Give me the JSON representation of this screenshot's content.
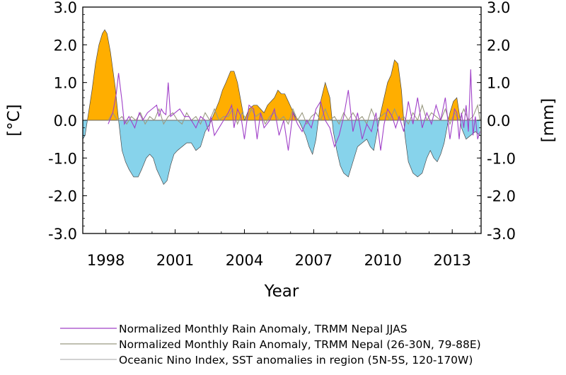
{
  "chart_data": {
    "type": "area",
    "xlabel": "Year",
    "ylabel_left": "[°C]",
    "ylabel_right": "[mm]",
    "xlim": [
      1997.0,
      2014.25
    ],
    "ylim": [
      -3.0,
      3.0
    ],
    "y_ticks": [
      3.0,
      2.0,
      1.0,
      0.0,
      -1.0,
      -2.0,
      -3.0
    ],
    "y_tick_labels": [
      "3.0",
      "2.0",
      "1.0",
      "0.0",
      "-1.0",
      "-2.0",
      "-3.0"
    ],
    "x_ticks": [
      1998,
      2001,
      2004,
      2007,
      2010,
      2013
    ],
    "x_tick_labels": [
      "1998",
      "2001",
      "2004",
      "2007",
      "2010",
      "2013"
    ],
    "grid": false,
    "legend_position": "bottom",
    "colors": {
      "positive_fill": "#FFAE00",
      "negative_fill": "#87D3EB",
      "rain_jjas": "#A040C8",
      "rain_region": "#9A9A82",
      "oni_line": "#8A8A8A"
    },
    "series": [
      {
        "name": "Oceanic Nino Index, SST anomalies in region (5N-5S, 120-170W)",
        "style": "filled-area",
        "x": [
          1997.0,
          1997.1,
          1997.25,
          1997.4,
          1997.55,
          1997.7,
          1997.85,
          1997.95,
          1998.05,
          1998.2,
          1998.4,
          1998.55,
          1998.7,
          1998.85,
          1999.0,
          1999.2,
          1999.4,
          1999.55,
          1999.75,
          1999.9,
          2000.05,
          2000.2,
          2000.35,
          2000.5,
          2000.65,
          2000.8,
          2000.95,
          2001.1,
          2001.3,
          2001.5,
          2001.7,
          2001.9,
          2002.1,
          2002.3,
          2002.5,
          2002.7,
          2002.9,
          2003.05,
          2003.2,
          2003.4,
          2003.55,
          2003.7,
          2003.85,
          2004.0,
          2004.2,
          2004.4,
          2004.55,
          2004.7,
          2004.85,
          2005.0,
          2005.15,
          2005.3,
          2005.45,
          2005.6,
          2005.75,
          2005.9,
          2006.05,
          2006.2,
          2006.35,
          2006.5,
          2006.65,
          2006.8,
          2006.95,
          2007.1,
          2007.3,
          2007.5,
          2007.7,
          2007.85,
          2008.0,
          2008.15,
          2008.3,
          2008.5,
          2008.7,
          2008.9,
          2009.1,
          2009.3,
          2009.45,
          2009.6,
          2009.75,
          2009.9,
          2010.05,
          2010.2,
          2010.35,
          2010.5,
          2010.65,
          2010.8,
          2010.95,
          2011.1,
          2011.3,
          2011.5,
          2011.7,
          2011.9,
          2012.05,
          2012.2,
          2012.35,
          2012.5,
          2012.65,
          2012.8,
          2012.9,
          2013.05,
          2013.2,
          2013.4,
          2013.6,
          2013.8,
          2014.0,
          2014.2
        ],
        "y": [
          -0.5,
          -0.4,
          0.2,
          0.8,
          1.5,
          2.0,
          2.3,
          2.4,
          2.3,
          1.8,
          0.9,
          0.0,
          -0.8,
          -1.1,
          -1.3,
          -1.5,
          -1.5,
          -1.3,
          -1.0,
          -0.9,
          -1.0,
          -1.3,
          -1.5,
          -1.7,
          -1.6,
          -1.2,
          -0.9,
          -0.8,
          -0.7,
          -0.6,
          -0.6,
          -0.8,
          -0.7,
          -0.3,
          -0.1,
          0.2,
          0.5,
          0.8,
          1.0,
          1.3,
          1.3,
          1.0,
          0.5,
          0.0,
          0.3,
          0.4,
          0.4,
          0.3,
          0.2,
          0.4,
          0.5,
          0.6,
          0.8,
          0.7,
          0.7,
          0.5,
          0.3,
          0.1,
          0.0,
          -0.2,
          -0.4,
          -0.7,
          -0.9,
          -0.5,
          0.5,
          1.0,
          0.6,
          -0.3,
          -0.8,
          -1.2,
          -1.4,
          -1.5,
          -1.1,
          -0.7,
          -0.6,
          -0.5,
          -0.7,
          -0.8,
          -0.3,
          0.2,
          0.6,
          1.0,
          1.2,
          1.6,
          1.5,
          0.8,
          -0.4,
          -1.1,
          -1.4,
          -1.5,
          -1.4,
          -1.0,
          -0.8,
          -1.0,
          -1.1,
          -0.9,
          -0.6,
          -0.1,
          0.2,
          0.5,
          0.6,
          -0.2,
          -0.5,
          -0.4,
          -0.3,
          -0.4
        ]
      },
      {
        "name": "Normalized Monthly Rain Anomaly, TRMM Nepal JJAS",
        "style": "line",
        "x": [
          1998.1,
          1998.3,
          1998.45,
          1998.55,
          1998.7,
          1998.8,
          1999.0,
          1999.25,
          1999.45,
          1999.6,
          1999.8,
          2000.0,
          2000.2,
          2000.3,
          2000.4,
          2000.5,
          2000.6,
          2000.7,
          2000.8,
          2001.0,
          2001.2,
          2001.4,
          2001.6,
          2001.9,
          2002.1,
          2002.3,
          2002.45,
          2002.55,
          2002.7,
          2002.9,
          2003.1,
          2003.3,
          2003.45,
          2003.55,
          2003.7,
          2003.85,
          2004.0,
          2004.2,
          2004.4,
          2004.55,
          2004.7,
          2004.85,
          2005.1,
          2005.3,
          2005.5,
          2005.7,
          2005.9,
          2006.1,
          2006.3,
          2006.5,
          2006.7,
          2006.9,
          2007.1,
          2007.3,
          2007.5,
          2007.7,
          2007.9,
          2008.1,
          2008.3,
          2008.5,
          2008.7,
          2008.9,
          2009.1,
          2009.3,
          2009.5,
          2009.7,
          2009.9,
          2010.05,
          2010.2,
          2010.4,
          2010.55,
          2010.7,
          2010.9,
          2011.1,
          2011.3,
          2011.5,
          2011.7,
          2011.9,
          2012.1,
          2012.3,
          2012.5,
          2012.7,
          2012.9,
          2013.1,
          2013.2,
          2013.3,
          2013.4,
          2013.5,
          2013.6,
          2013.7,
          2013.8,
          2013.9,
          2014.0,
          2014.1,
          2014.2
        ],
        "y": [
          -0.1,
          0.2,
          0.7,
          1.25,
          0.5,
          -0.1,
          0.1,
          -0.2,
          0.2,
          0.0,
          0.2,
          0.3,
          0.4,
          0.1,
          0.3,
          0.2,
          0.15,
          1.0,
          0.1,
          0.2,
          0.3,
          0.1,
          0.1,
          -0.2,
          0.1,
          0.0,
          -0.3,
          0.1,
          -0.4,
          -0.2,
          0.0,
          0.2,
          0.4,
          -0.2,
          0.3,
          0.1,
          -0.5,
          0.4,
          0.3,
          -0.5,
          0.2,
          -0.2,
          0.0,
          0.3,
          -0.4,
          0.0,
          -0.8,
          0.2,
          -0.1,
          -0.3,
          0.0,
          -0.2,
          0.3,
          0.5,
          0.0,
          -0.2,
          -0.7,
          -0.4,
          0.1,
          0.8,
          -0.3,
          0.2,
          -0.5,
          -0.1,
          -0.3,
          0.2,
          -0.8,
          -0.1,
          0.3,
          0.1,
          -0.2,
          0.1,
          -0.3,
          0.5,
          -0.1,
          0.6,
          -0.2,
          0.2,
          -0.1,
          0.4,
          0.0,
          0.6,
          -0.5,
          0.3,
          0.2,
          -0.5,
          0.2,
          -0.2,
          0.4,
          -0.3,
          1.35,
          -0.4,
          0.1,
          -0.5,
          -0.3
        ]
      },
      {
        "name": "Normalized Monthly Rain Anomaly, TRMM Nepal (26-30N, 79-88E)",
        "style": "line",
        "x": [
          1998.1,
          1998.3,
          1998.5,
          1998.7,
          1998.9,
          1999.1,
          1999.3,
          1999.5,
          1999.7,
          1999.9,
          2000.1,
          2000.3,
          2000.5,
          2000.7,
          2000.9,
          2001.1,
          2001.3,
          2001.5,
          2001.7,
          2001.9,
          2002.1,
          2002.3,
          2002.5,
          2002.7,
          2002.9,
          2003.1,
          2003.3,
          2003.5,
          2003.7,
          2003.9,
          2004.1,
          2004.3,
          2004.5,
          2004.7,
          2004.9,
          2005.1,
          2005.3,
          2005.5,
          2005.7,
          2005.9,
          2006.1,
          2006.3,
          2006.5,
          2006.7,
          2006.9,
          2007.1,
          2007.3,
          2007.5,
          2007.7,
          2007.9,
          2008.1,
          2008.3,
          2008.5,
          2008.7,
          2008.9,
          2009.1,
          2009.3,
          2009.5,
          2009.7,
          2009.9,
          2010.1,
          2010.3,
          2010.5,
          2010.7,
          2010.9,
          2011.1,
          2011.3,
          2011.5,
          2011.7,
          2011.9,
          2012.1,
          2012.3,
          2012.5,
          2012.7,
          2012.9,
          2013.1,
          2013.3,
          2013.5,
          2013.7,
          2013.9,
          2014.1,
          2014.2
        ],
        "y": [
          0.0,
          0.2,
          0.0,
          0.1,
          -0.1,
          0.1,
          0.0,
          0.2,
          -0.1,
          0.1,
          0.0,
          0.3,
          -0.1,
          0.1,
          0.2,
          0.0,
          -0.1,
          0.2,
          0.0,
          0.1,
          -0.1,
          0.2,
          0.0,
          0.3,
          0.0,
          0.1,
          0.1,
          0.3,
          -0.1,
          0.2,
          0.0,
          0.3,
          0.1,
          0.2,
          -0.1,
          0.1,
          0.2,
          0.0,
          0.1,
          -0.1,
          0.3,
          0.0,
          0.2,
          -0.1,
          0.1,
          0.2,
          0.0,
          0.3,
          0.0,
          0.1,
          -0.1,
          0.2,
          0.0,
          0.2,
          0.0,
          0.1,
          -0.1,
          0.3,
          0.0,
          0.1,
          0.2,
          0.0,
          0.3,
          0.0,
          0.1,
          -0.1,
          0.2,
          0.0,
          0.4,
          0.0,
          0.2,
          0.1,
          0.0,
          0.3,
          -0.1,
          0.2,
          0.0,
          0.3,
          0.0,
          0.1,
          0.4,
          0.0
        ]
      }
    ]
  }
}
